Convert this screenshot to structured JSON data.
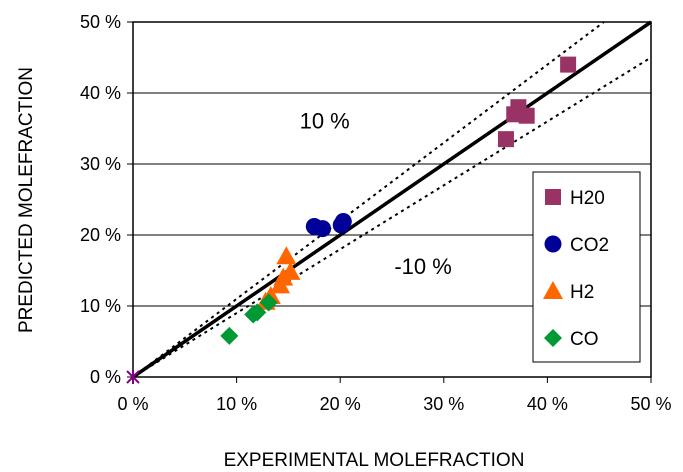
{
  "chart_data": {
    "type": "scatter",
    "title": "",
    "xlabel": "EXPERIMENTAL MOLEFRACTION",
    "ylabel": "PREDICTED MOLEFRACTION",
    "xlim": [
      0,
      50
    ],
    "ylim": [
      0,
      50
    ],
    "x_ticks": [
      0,
      10,
      20,
      30,
      40,
      50
    ],
    "y_ticks": [
      0,
      10,
      20,
      30,
      40,
      50
    ],
    "x_tick_labels": [
      "0 %",
      "10 %",
      "20 %",
      "30 %",
      "40 %",
      "50 %"
    ],
    "y_tick_labels": [
      "0 %",
      "10 %",
      "20 %",
      "30 %",
      "40 %",
      "50 %"
    ],
    "grid": "horizontal",
    "legend_position": "right",
    "origin_marker": {
      "x": 0,
      "y": 0,
      "color": "#800080"
    },
    "reference_lines": [
      {
        "type": "parity",
        "slope": 1.0,
        "style": "solid"
      },
      {
        "type": "upper",
        "slope": 1.1,
        "style": "dotted"
      },
      {
        "type": "lower",
        "slope": 0.9,
        "style": "dotted"
      }
    ],
    "annotations": [
      {
        "text": "10 %",
        "x": 18.5,
        "y": 35
      },
      {
        "text": "-10 %",
        "x": 28,
        "y": 14.5
      }
    ],
    "series": [
      {
        "name": "H20",
        "marker": "square",
        "color": "#993366",
        "points": [
          [
            36,
            33.5
          ],
          [
            36.8,
            37
          ],
          [
            37.2,
            38
          ],
          [
            38,
            36.8
          ],
          [
            42,
            44
          ]
        ]
      },
      {
        "name": "CO2",
        "marker": "circle",
        "color": "#000099",
        "points": [
          [
            17.5,
            21.2
          ],
          [
            18.3,
            20.9
          ],
          [
            20.3,
            21.9
          ],
          [
            20.1,
            21.4
          ]
        ]
      },
      {
        "name": "H2",
        "marker": "triangle",
        "color": "#FF6600",
        "points": [
          [
            12.8,
            10.6
          ],
          [
            13.3,
            11.4
          ],
          [
            14.2,
            12.9
          ],
          [
            14.5,
            14
          ],
          [
            14.8,
            17
          ],
          [
            15.2,
            14.8
          ]
        ]
      },
      {
        "name": "CO",
        "marker": "diamond",
        "color": "#009933",
        "points": [
          [
            9.3,
            5.8
          ],
          [
            11.6,
            8.8
          ],
          [
            12,
            9.1
          ],
          [
            13.1,
            10.5
          ]
        ]
      }
    ]
  }
}
